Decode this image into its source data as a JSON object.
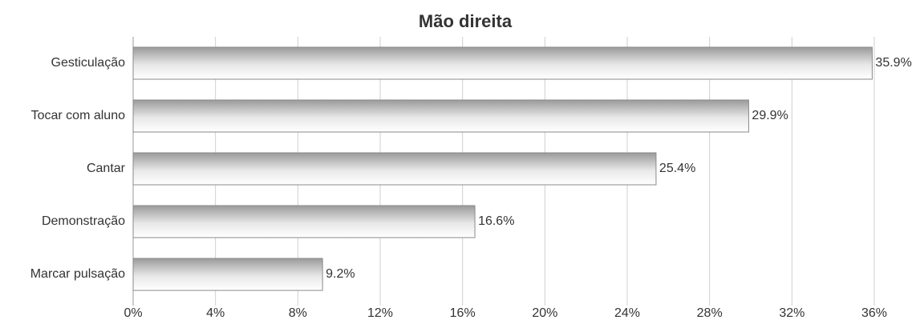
{
  "chart_data": {
    "type": "bar",
    "orientation": "horizontal",
    "title": "Mão direita",
    "categories": [
      "Gesticulação",
      "Tocar com aluno",
      "Cantar",
      "Demonstração",
      "Marcar pulsação"
    ],
    "values": [
      35.9,
      29.9,
      25.4,
      16.6,
      9.2
    ],
    "value_labels": [
      "35.9%",
      "29.9%",
      "25.4%",
      "16.6%",
      "9.2%"
    ],
    "color": "#9a9a9a",
    "xlim": [
      0,
      36
    ],
    "xticks": [
      {
        "value": 0,
        "label": "0%"
      },
      {
        "value": 4,
        "label": "4%"
      },
      {
        "value": 8,
        "label": "8%"
      },
      {
        "value": 12,
        "label": "12%"
      },
      {
        "value": 16,
        "label": "16%"
      },
      {
        "value": 20,
        "label": "20%"
      },
      {
        "value": 24,
        "label": "24%"
      },
      {
        "value": 28,
        "label": "28%"
      },
      {
        "value": 32,
        "label": "32%"
      },
      {
        "value": 36,
        "label": "36%"
      }
    ],
    "grid": true
  }
}
